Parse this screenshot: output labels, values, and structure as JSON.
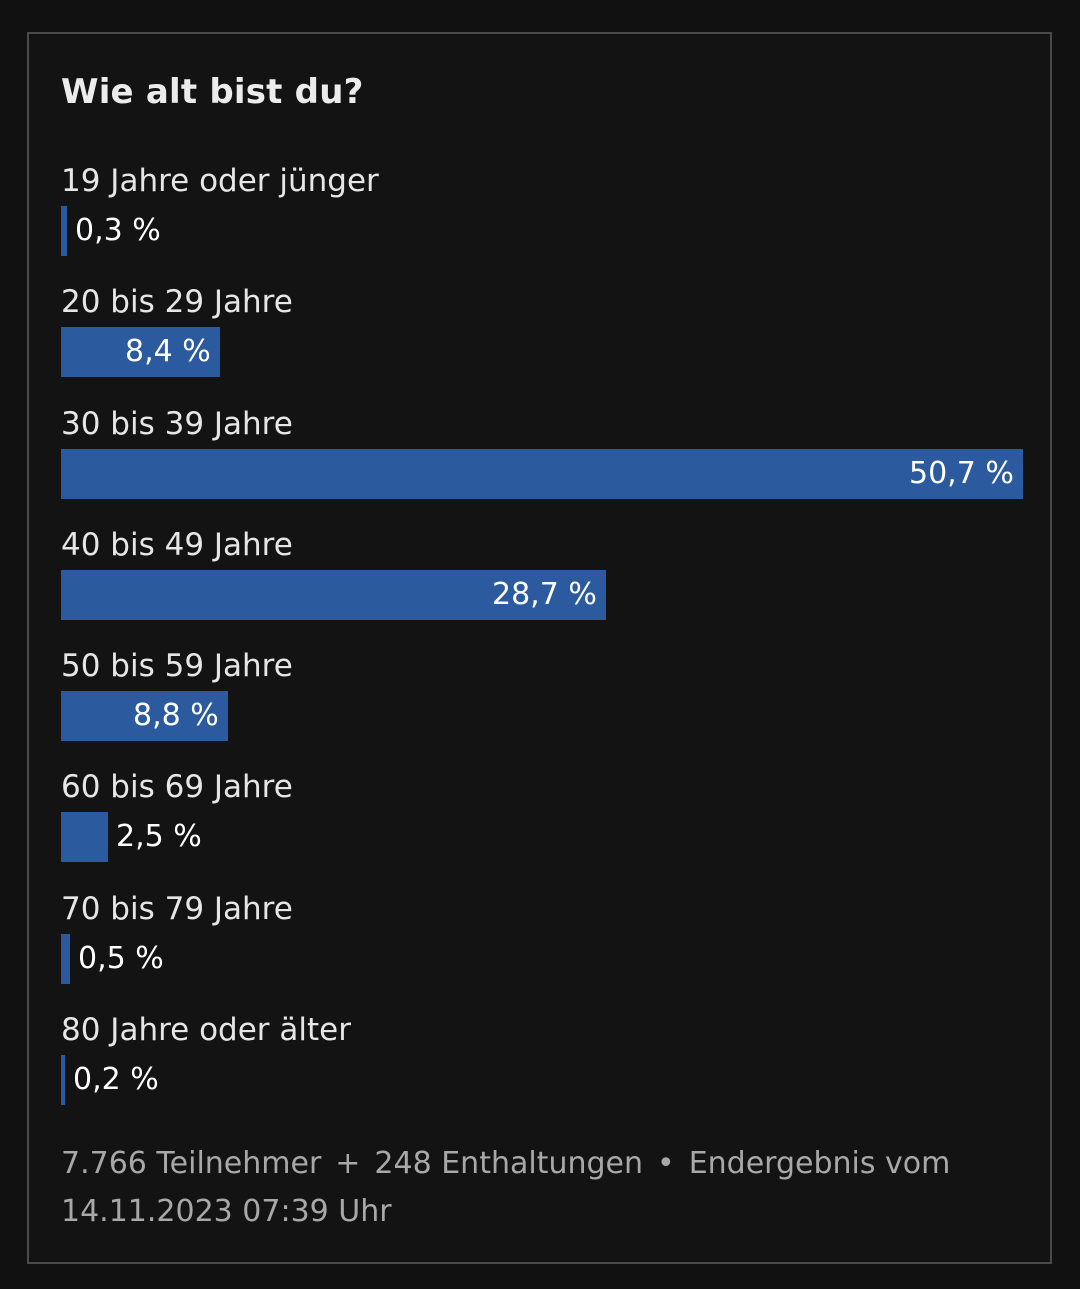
{
  "poll": {
    "title": "Wie alt bist du?",
    "options": [
      {
        "label": "19 Jahre oder jünger",
        "value": 0.3,
        "value_text": "0,3 %"
      },
      {
        "label": "20 bis 29 Jahre",
        "value": 8.4,
        "value_text": "8,4 %"
      },
      {
        "label": "30 bis 39 Jahre",
        "value": 50.7,
        "value_text": "50,7 %"
      },
      {
        "label": "40 bis 49 Jahre",
        "value": 28.7,
        "value_text": "28,7 %"
      },
      {
        "label": "50 bis 59 Jahre",
        "value": 8.8,
        "value_text": "8,8 %"
      },
      {
        "label": "60 bis 69 Jahre",
        "value": 2.5,
        "value_text": "2,5 %"
      },
      {
        "label": "70 bis 79 Jahre",
        "value": 0.5,
        "value_text": "0,5 %"
      },
      {
        "label": "80 Jahre oder älter",
        "value": 0.2,
        "value_text": "0,2 %"
      }
    ],
    "footer": {
      "participants": "7.766 Teilnehmer",
      "plus": "+",
      "abstentions": "248 Enthaltungen",
      "bullet": "•",
      "result_prefix": "Endergebnis vom",
      "timestamp": "14.11.2023 07:39 Uhr"
    }
  },
  "colors": {
    "bar": "#2b5a9e",
    "background": "#111111",
    "border": "#4a4a4a"
  }
}
